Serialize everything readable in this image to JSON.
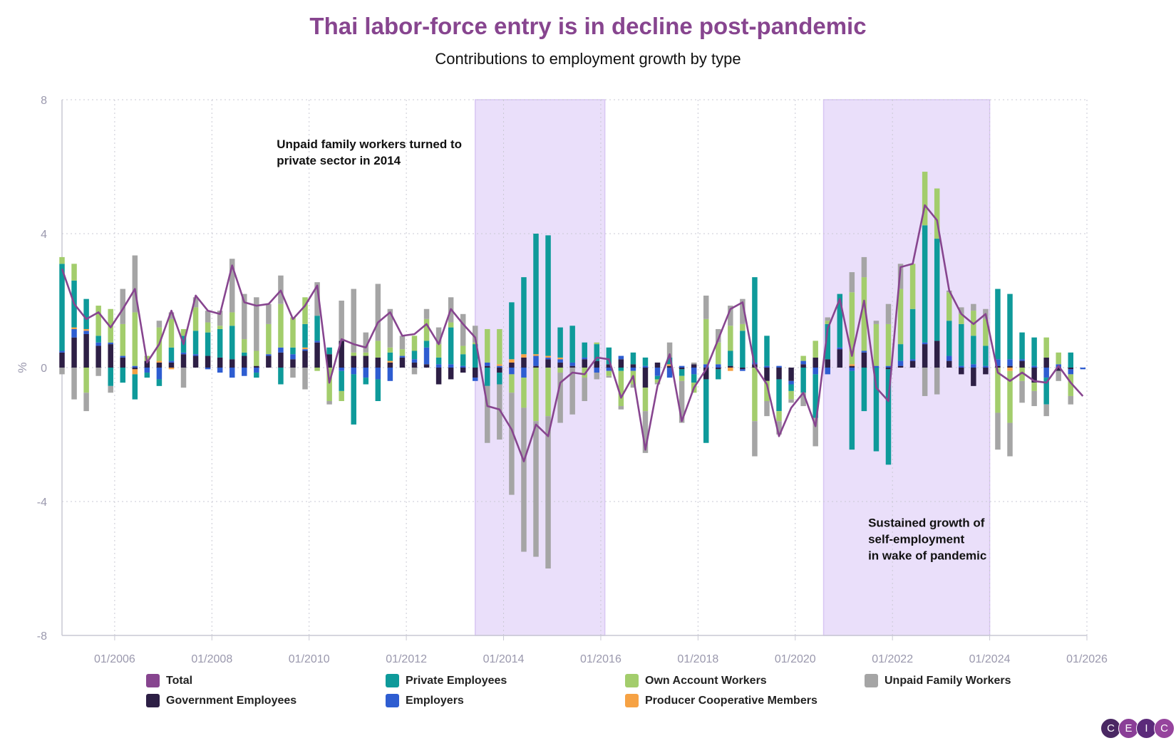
{
  "chart_data": {
    "type": "bar",
    "title": "Thai labor-force entry is in decline post-pandemic",
    "subtitle": "Contributions to employment growth by type",
    "ylabel": "%",
    "ylim": [
      -8,
      8
    ],
    "yticks": [
      8,
      4,
      0,
      -4,
      -8
    ],
    "xlim": [
      "2004-12",
      "2026-01"
    ],
    "xticks": [
      "01/2006",
      "01/2008",
      "01/2010",
      "01/2012",
      "01/2014",
      "01/2016",
      "01/2018",
      "01/2020",
      "01/2022",
      "01/2024",
      "01/2026"
    ],
    "grid": true,
    "legend_position": "bottom",
    "shaded_periods": [
      {
        "start": "2013-06",
        "end": "2016-02"
      },
      {
        "start": "2020-08",
        "end": "2024-01"
      }
    ],
    "annotations": [
      {
        "lines": [
          "Unpaid family workers turned to",
          "private sector in 2014"
        ],
        "x": "2009-05",
        "y": 6.55
      },
      {
        "lines": [
          "Sustained growth of",
          "self-employment",
          "in wake of pandemic"
        ],
        "x": "2021-07",
        "y": -4.75
      }
    ],
    "colors": {
      "Total": "#87458f",
      "Government Employees": "#2d1f45",
      "Private Employees": "#0e9a9a",
      "Employers": "#2e5dd1",
      "Own Account Workers": "#a3cd6c",
      "Producer Cooperative Members": "#f6a244",
      "Unpaid Family Workers": "#a5a5a5"
    },
    "legend": [
      {
        "name": "Total",
        "color": "#87458f"
      },
      {
        "name": "Private Employees",
        "color": "#0e9a9a"
      },
      {
        "name": "Own Account Workers",
        "color": "#a3cd6c"
      },
      {
        "name": "Unpaid Family Workers",
        "color": "#a5a5a5"
      },
      {
        "name": "Government Employees",
        "color": "#2d1f45"
      },
      {
        "name": "Employers",
        "color": "#2e5dd1"
      },
      {
        "name": "Producer Cooperative Members",
        "color": "#f6a244"
      }
    ],
    "series_order": [
      "Government Employees",
      "Employers",
      "Producer Cooperative Members",
      "Private Employees",
      "Own Account Workers",
      "Unpaid Family Workers"
    ],
    "data": [
      {
        "date": "2004-12",
        "gov": 0.45,
        "emp": 0.05,
        "coop": 0,
        "priv": 2.6,
        "own": 0.2,
        "unpaid": -0.2,
        "total": 2.95
      },
      {
        "date": "2005-03",
        "gov": 0.9,
        "emp": 0.25,
        "coop": 0.05,
        "priv": 1.4,
        "own": 0.5,
        "unpaid": -0.95,
        "total": 1.9
      },
      {
        "date": "2005-06",
        "gov": 1.0,
        "emp": 0.1,
        "coop": 0.05,
        "priv": 0.9,
        "own": -0.75,
        "unpaid": -0.55,
        "total": 1.45
      },
      {
        "date": "2005-09",
        "gov": 0.65,
        "emp": 0.1,
        "coop": 0,
        "priv": 0.2,
        "own": 0.9,
        "unpaid": -0.25,
        "total": 1.65
      },
      {
        "date": "2005-12",
        "gov": 0.7,
        "emp": 0.05,
        "coop": 0,
        "priv": -0.55,
        "own": 1.0,
        "unpaid": -0.2,
        "total": 1.2
      },
      {
        "date": "2006-03",
        "gov": 0.3,
        "emp": 0.05,
        "coop": 0,
        "priv": -0.45,
        "own": 0.95,
        "unpaid": 1.05,
        "total": 1.75
      },
      {
        "date": "2006-06",
        "gov": -0.05,
        "emp": 0.05,
        "coop": -0.15,
        "priv": -0.75,
        "own": 1.6,
        "unpaid": 1.7,
        "total": 2.35
      },
      {
        "date": "2006-09",
        "gov": 0.2,
        "emp": -0.15,
        "coop": 0,
        "priv": -0.15,
        "own": 0.15,
        "unpaid": 0,
        "total": 0.15
      },
      {
        "date": "2006-12",
        "gov": 0.15,
        "emp": -0.35,
        "coop": 0.05,
        "priv": -0.2,
        "own": 1.0,
        "unpaid": 0.2,
        "total": 0.7
      },
      {
        "date": "2007-03",
        "gov": 0.15,
        "emp": 0.05,
        "coop": -0.05,
        "priv": 0.4,
        "own": 0.85,
        "unpaid": 0.2,
        "total": 1.7
      },
      {
        "date": "2007-06",
        "gov": 0.4,
        "emp": 0.05,
        "coop": 0,
        "priv": 0.5,
        "own": 0.2,
        "unpaid": -0.6,
        "total": 0.7
      },
      {
        "date": "2007-09",
        "gov": 0.35,
        "emp": 0.05,
        "coop": 0,
        "priv": 0.7,
        "own": 0.7,
        "unpaid": 0.3,
        "total": 2.15
      },
      {
        "date": "2007-12",
        "gov": 0.35,
        "emp": -0.05,
        "coop": 0,
        "priv": 0.7,
        "own": 0.3,
        "unpaid": 0.35,
        "total": 1.7
      },
      {
        "date": "2008-03",
        "gov": 0.3,
        "emp": -0.15,
        "coop": 0,
        "priv": 0.85,
        "own": 0.1,
        "unpaid": 0.45,
        "total": 1.6
      },
      {
        "date": "2008-06",
        "gov": 0.25,
        "emp": -0.3,
        "coop": 0,
        "priv": 1.0,
        "own": 0.4,
        "unpaid": 1.6,
        "total": 3.05
      },
      {
        "date": "2008-09",
        "gov": 0.35,
        "emp": -0.25,
        "coop": 0,
        "priv": 0.1,
        "own": 0.4,
        "unpaid": 1.35,
        "total": 1.95
      },
      {
        "date": "2008-12",
        "gov": 0.05,
        "emp": -0.15,
        "coop": 0,
        "priv": -0.15,
        "own": 0.45,
        "unpaid": 1.6,
        "total": 1.85
      },
      {
        "date": "2009-03",
        "gov": 0.35,
        "emp": 0.05,
        "coop": 0,
        "priv": 0,
        "own": 0.9,
        "unpaid": 0.6,
        "total": 1.9
      },
      {
        "date": "2009-06",
        "gov": 0.45,
        "emp": 0.15,
        "coop": 0,
        "priv": -0.5,
        "own": 1.3,
        "unpaid": 0.85,
        "total": 2.3
      },
      {
        "date": "2009-09",
        "gov": 0.25,
        "emp": 0.15,
        "coop": 0,
        "priv": 0.2,
        "own": 0.9,
        "unpaid": -0.3,
        "total": 1.45
      },
      {
        "date": "2009-12",
        "gov": 0.5,
        "emp": 0.05,
        "coop": 0.05,
        "priv": 0.7,
        "own": 0.8,
        "unpaid": -0.65,
        "total": 1.85
      },
      {
        "date": "2010-03",
        "gov": 0.75,
        "emp": 0.05,
        "coop": 0,
        "priv": 0.75,
        "own": -0.1,
        "unpaid": 1.0,
        "total": 2.45
      },
      {
        "date": "2010-06",
        "gov": 0.4,
        "emp": 0,
        "coop": 0,
        "priv": 0.2,
        "own": -1.0,
        "unpaid": -0.1,
        "total": -0.45
      },
      {
        "date": "2010-09",
        "gov": 0.8,
        "emp": -0.1,
        "coop": 0,
        "priv": -0.6,
        "own": -0.3,
        "unpaid": 1.2,
        "total": 0.85
      },
      {
        "date": "2010-12",
        "gov": 0.35,
        "emp": -0.2,
        "coop": 0,
        "priv": -1.5,
        "own": 0.1,
        "unpaid": 1.9,
        "total": 0.7
      },
      {
        "date": "2011-03",
        "gov": 0.35,
        "emp": -0.3,
        "coop": 0,
        "priv": -0.2,
        "own": 0.1,
        "unpaid": 0.6,
        "total": 0.6
      },
      {
        "date": "2011-06",
        "gov": 0.3,
        "emp": -0.35,
        "coop": 0,
        "priv": -0.65,
        "own": 0.5,
        "unpaid": 1.7,
        "total": 1.35
      },
      {
        "date": "2011-09",
        "gov": 0.15,
        "emp": -0.4,
        "coop": 0.05,
        "priv": 0.25,
        "own": 0.15,
        "unpaid": 1.15,
        "total": 1.65
      },
      {
        "date": "2011-12",
        "gov": 0.3,
        "emp": 0.05,
        "coop": 0,
        "priv": 0,
        "own": 0.2,
        "unpaid": 0.4,
        "total": 0.95
      },
      {
        "date": "2012-03",
        "gov": 0.15,
        "emp": 0.1,
        "coop": 0,
        "priv": 0.25,
        "own": 0.45,
        "unpaid": -0.2,
        "total": 1.0
      },
      {
        "date": "2012-06",
        "gov": 0.1,
        "emp": 0.5,
        "coop": 0,
        "priv": 0.2,
        "own": 0.65,
        "unpaid": 0.3,
        "total": 1.3
      },
      {
        "date": "2012-09",
        "gov": -0.5,
        "emp": 0.1,
        "coop": 0,
        "priv": 0.2,
        "own": 0.4,
        "unpaid": 0.5,
        "total": 0.7
      },
      {
        "date": "2012-12",
        "gov": -0.35,
        "emp": 0.1,
        "coop": 0,
        "priv": 1.1,
        "own": 0.15,
        "unpaid": 0.75,
        "total": 1.75
      },
      {
        "date": "2013-03",
        "gov": -0.15,
        "emp": 0.05,
        "coop": 0,
        "priv": 0.35,
        "own": 0.25,
        "unpaid": 0.95,
        "total": 1.3
      },
      {
        "date": "2013-06",
        "gov": -0.3,
        "emp": -0.1,
        "coop": 0,
        "priv": 0.7,
        "own": 0.05,
        "unpaid": 0.5,
        "total": 0.9
      },
      {
        "date": "2013-09",
        "gov": 0.05,
        "emp": 0.1,
        "coop": 0,
        "priv": -0.55,
        "own": 1.0,
        "unpaid": -1.7,
        "total": -1.15
      },
      {
        "date": "2013-12",
        "gov": -0.15,
        "emp": 0.05,
        "coop": 0.05,
        "priv": -0.35,
        "own": 1.05,
        "unpaid": -1.65,
        "total": -1.25
      },
      {
        "date": "2014-03",
        "gov": 0.15,
        "emp": -0.2,
        "coop": 0.1,
        "priv": 1.7,
        "own": -0.55,
        "unpaid": -3.05,
        "total": -1.85
      },
      {
        "date": "2014-06",
        "gov": 0.3,
        "emp": -0.3,
        "coop": 0.1,
        "priv": 2.3,
        "own": -0.9,
        "unpaid": -4.3,
        "total": -2.8
      },
      {
        "date": "2014-09",
        "gov": 0.05,
        "emp": 0.3,
        "coop": 0.05,
        "priv": 3.6,
        "own": -1.6,
        "unpaid": -4.05,
        "total": -1.7
      },
      {
        "date": "2014-12",
        "gov": 0.25,
        "emp": 0.05,
        "coop": 0.05,
        "priv": 3.6,
        "own": -1.45,
        "unpaid": -4.55,
        "total": -2.05
      },
      {
        "date": "2015-03",
        "gov": 0.15,
        "emp": 0.1,
        "coop": 0.05,
        "priv": 0.9,
        "own": -0.15,
        "unpaid": -1.5,
        "total": -0.45
      },
      {
        "date": "2015-06",
        "gov": 0.05,
        "emp": 0.1,
        "coop": 0,
        "priv": 1.1,
        "own": 0,
        "unpaid": -1.4,
        "total": -0.15
      },
      {
        "date": "2015-09",
        "gov": 0.25,
        "emp": 0.05,
        "coop": 0,
        "priv": 0.45,
        "own": -0.3,
        "unpaid": -0.7,
        "total": -0.2
      },
      {
        "date": "2015-12",
        "gov": 0.2,
        "emp": -0.15,
        "coop": 0,
        "priv": 0.5,
        "own": 0.05,
        "unpaid": -0.2,
        "total": 0.3
      },
      {
        "date": "2016-03",
        "gov": 0.1,
        "emp": -0.1,
        "coop": 0,
        "priv": 0.5,
        "own": -0.15,
        "unpaid": -0.05,
        "total": 0.25
      },
      {
        "date": "2016-06",
        "gov": 0.25,
        "emp": 0.1,
        "coop": 0,
        "priv": -0.1,
        "own": -1.05,
        "unpaid": -0.1,
        "total": -0.9
      },
      {
        "date": "2016-09",
        "gov": 0.1,
        "emp": -0.1,
        "coop": 0,
        "priv": 0.35,
        "own": -0.4,
        "unpaid": -0.1,
        "total": -0.25
      },
      {
        "date": "2016-12",
        "gov": -0.6,
        "emp": 0.05,
        "coop": 0,
        "priv": 0.25,
        "own": -0.7,
        "unpaid": -1.25,
        "total": -2.45
      },
      {
        "date": "2017-03",
        "gov": 0.15,
        "emp": -0.25,
        "coop": 0,
        "priv": -0.1,
        "own": -0.1,
        "unpaid": -0.05,
        "total": -0.55
      },
      {
        "date": "2017-06",
        "gov": 0.05,
        "emp": -0.3,
        "coop": 0.05,
        "priv": 0.2,
        "own": 0,
        "unpaid": 0.45,
        "total": 0.4
      },
      {
        "date": "2017-09",
        "gov": -0.05,
        "emp": 0.05,
        "coop": 0,
        "priv": -0.2,
        "own": -0.15,
        "unpaid": -1.25,
        "total": -1.6
      },
      {
        "date": "2017-12",
        "gov": 0.1,
        "emp": -0.2,
        "coop": 0,
        "priv": -0.25,
        "own": -0.3,
        "unpaid": 0.05,
        "total": -0.6
      },
      {
        "date": "2018-03",
        "gov": -0.35,
        "emp": 0.1,
        "coop": 0,
        "priv": -1.9,
        "own": 1.35,
        "unpaid": 0.7,
        "total": -0.05
      },
      {
        "date": "2018-06",
        "gov": -0.05,
        "emp": 0.1,
        "coop": 0,
        "priv": -0.3,
        "own": 0.65,
        "unpaid": 0.4,
        "total": 0.85
      },
      {
        "date": "2018-09",
        "gov": 0.05,
        "emp": 0,
        "coop": -0.1,
        "priv": 0.45,
        "own": 0.75,
        "unpaid": 0.6,
        "total": 1.75
      },
      {
        "date": "2018-12",
        "gov": -0.05,
        "emp": -0.05,
        "coop": 0,
        "priv": 1.1,
        "own": 0.2,
        "unpaid": 0.75,
        "total": 1.95
      },
      {
        "date": "2019-03",
        "gov": 0.1,
        "emp": 0.05,
        "coop": 0,
        "priv": 2.55,
        "own": -1.6,
        "unpaid": -1.05,
        "total": 0.05
      },
      {
        "date": "2019-06",
        "gov": -0.4,
        "emp": 0.05,
        "coop": 0,
        "priv": 0.9,
        "own": -0.6,
        "unpaid": -0.45,
        "total": -0.5
      },
      {
        "date": "2019-09",
        "gov": -0.35,
        "emp": 0.05,
        "coop": 0,
        "priv": -0.95,
        "own": -0.3,
        "unpaid": -0.4,
        "total": -2.05
      },
      {
        "date": "2019-12",
        "gov": -0.4,
        "emp": -0.1,
        "coop": 0,
        "priv": -0.2,
        "own": -0.25,
        "unpaid": -0.1,
        "total": -1.2
      },
      {
        "date": "2020-03",
        "gov": 0.1,
        "emp": 0.1,
        "coop": 0,
        "priv": -0.75,
        "own": 0.15,
        "unpaid": -0.4,
        "total": -0.75
      },
      {
        "date": "2020-06",
        "gov": 0.3,
        "emp": -0.2,
        "coop": 0,
        "priv": -1.3,
        "own": 0.5,
        "unpaid": -0.85,
        "total": -1.75
      },
      {
        "date": "2020-09",
        "gov": 0.25,
        "emp": -0.2,
        "coop": 0,
        "priv": 1.05,
        "own": 0.1,
        "unpaid": 0.1,
        "total": 1.15
      },
      {
        "date": "2020-12",
        "gov": 0.55,
        "emp": 0.05,
        "coop": 0,
        "priv": 1.6,
        "own": 0,
        "unpaid": 0,
        "total": 2.05
      },
      {
        "date": "2021-03",
        "gov": 0.05,
        "emp": -0.1,
        "coop": 0.05,
        "priv": -2.35,
        "own": 2.15,
        "unpaid": 0.6,
        "total": 0.35
      },
      {
        "date": "2021-06",
        "gov": 0.45,
        "emp": 0.05,
        "coop": 0,
        "priv": -1.3,
        "own": 2.2,
        "unpaid": 0.6,
        "total": 2.0
      },
      {
        "date": "2021-09",
        "gov": 0,
        "emp": 0.05,
        "coop": 0,
        "priv": -2.5,
        "own": 1.25,
        "unpaid": 0.1,
        "total": -0.6
      },
      {
        "date": "2021-12",
        "gov": -0.05,
        "emp": 0.05,
        "coop": 0,
        "priv": -2.85,
        "own": 1.25,
        "unpaid": 0.6,
        "total": -1.0
      },
      {
        "date": "2022-03",
        "gov": 0.05,
        "emp": 0.15,
        "coop": 0,
        "priv": 0.5,
        "own": 1.65,
        "unpaid": 0.75,
        "total": 3.0
      },
      {
        "date": "2022-06",
        "gov": 0.2,
        "emp": 0.05,
        "coop": 0,
        "priv": 1.5,
        "own": 1.35,
        "unpaid": 0,
        "total": 3.1
      },
      {
        "date": "2022-09",
        "gov": 0.7,
        "emp": 0.05,
        "coop": 0,
        "priv": 3.5,
        "own": 1.6,
        "unpaid": -0.85,
        "total": 4.85
      },
      {
        "date": "2022-12",
        "gov": 0.8,
        "emp": 0,
        "coop": 0,
        "priv": 3.05,
        "own": 1.5,
        "unpaid": -0.8,
        "total": 4.4
      },
      {
        "date": "2023-03",
        "gov": 0.2,
        "emp": 0.15,
        "coop": 0,
        "priv": 1.05,
        "own": 0.85,
        "unpaid": 0.05,
        "total": 2.3
      },
      {
        "date": "2023-06",
        "gov": -0.2,
        "emp": 0.05,
        "coop": 0,
        "priv": 1.25,
        "own": 0.3,
        "unpaid": 0.2,
        "total": 1.6
      },
      {
        "date": "2023-09",
        "gov": -0.55,
        "emp": 0.1,
        "coop": 0,
        "priv": 0.85,
        "own": 0.75,
        "unpaid": 0.2,
        "total": 1.3
      },
      {
        "date": "2023-12",
        "gov": -0.2,
        "emp": 0.05,
        "coop": 0,
        "priv": 0.6,
        "own": 0.8,
        "unpaid": 0.3,
        "total": 1.6
      },
      {
        "date": "2024-03",
        "gov": 0.05,
        "emp": 0.2,
        "coop": 0,
        "priv": 2.1,
        "own": -1.35,
        "unpaid": -1.1,
        "total": -0.15
      },
      {
        "date": "2024-06",
        "gov": 0.05,
        "emp": 0.2,
        "coop": -0.1,
        "priv": 1.95,
        "own": -1.55,
        "unpaid": -1.0,
        "total": -0.4
      },
      {
        "date": "2024-09",
        "gov": 0.2,
        "emp": 0.05,
        "coop": 0,
        "priv": 0.8,
        "own": -0.4,
        "unpaid": -0.65,
        "total": -0.15
      },
      {
        "date": "2024-12",
        "gov": -0.45,
        "emp": 0.05,
        "coop": 0,
        "priv": 0.85,
        "own": -0.25,
        "unpaid": -0.45,
        "total": -0.4
      },
      {
        "date": "2025-03",
        "gov": 0.3,
        "emp": -0.3,
        "coop": 0,
        "priv": -0.8,
        "own": 0.6,
        "unpaid": -0.35,
        "total": -0.45
      },
      {
        "date": "2025-06",
        "gov": -0.1,
        "emp": 0.1,
        "coop": 0,
        "priv": 0,
        "own": 0.35,
        "unpaid": -0.3,
        "total": 0.05
      },
      {
        "date": "2025-09",
        "gov": -0.05,
        "emp": -0.15,
        "coop": 0,
        "priv": 0.45,
        "own": -0.65,
        "unpaid": -0.25,
        "total": -0.45
      },
      {
        "date": "2025-12",
        "gov": 0,
        "emp": -0.05,
        "coop": 0,
        "priv": 0,
        "own": 0,
        "unpaid": 0,
        "total": -0.85
      }
    ]
  },
  "branding": {
    "logo_letters": [
      "C",
      "E",
      "I",
      "C"
    ]
  }
}
